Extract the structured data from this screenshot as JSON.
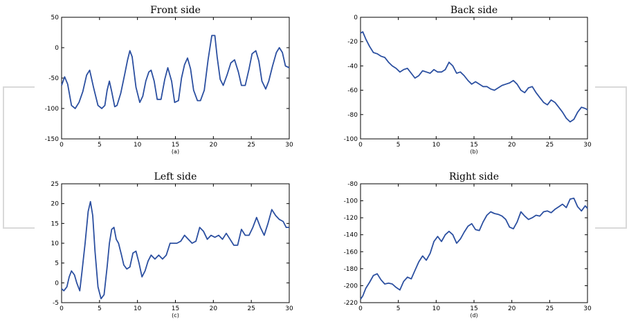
{
  "chart_data": [
    {
      "type": "line",
      "title": "Front side",
      "caption": "(a)",
      "xlabel": "",
      "ylabel": "",
      "xlim": [
        0,
        30
      ],
      "ylim": [
        -150,
        50
      ],
      "xticks": [
        0,
        5,
        10,
        15,
        20,
        25,
        30
      ],
      "yticks": [
        -150,
        -100,
        -50,
        0,
        50
      ],
      "grid": false,
      "color": "#2b4fa0",
      "series": [
        {
          "x": [
            0,
            0.4,
            0.8,
            1.3,
            1.8,
            2.3,
            2.8,
            3.3,
            3.7,
            4.2,
            4.8,
            5.3,
            5.7,
            6.0,
            6.3,
            6.6,
            7.0,
            7.3,
            7.8,
            8.3,
            8.7,
            9.0,
            9.3,
            9.8,
            10.3,
            10.7,
            11.1,
            11.5,
            11.8,
            12.2,
            12.6,
            13.1,
            13.6,
            14.0,
            14.5,
            14.9,
            15.4,
            15.8,
            16.2,
            16.6,
            17.0,
            17.4,
            17.9,
            18.3,
            18.8,
            19.3,
            19.8,
            20.2,
            20.5,
            20.9,
            21.3,
            21.8,
            22.3,
            22.8,
            23.3,
            23.7,
            24.2,
            24.7,
            25.1,
            25.6,
            26.0,
            26.4,
            26.9,
            27.3,
            27.8,
            28.3,
            28.7,
            29.1,
            29.5,
            30
          ],
          "y": [
            -62,
            -48,
            -60,
            -95,
            -100,
            -90,
            -72,
            -45,
            -37,
            -65,
            -95,
            -100,
            -95,
            -70,
            -55,
            -72,
            -97,
            -95,
            -75,
            -45,
            -20,
            -5,
            -15,
            -65,
            -90,
            -80,
            -55,
            -40,
            -37,
            -55,
            -85,
            -85,
            -52,
            -33,
            -55,
            -90,
            -87,
            -50,
            -28,
            -17,
            -35,
            -70,
            -87,
            -87,
            -70,
            -20,
            20,
            20,
            -15,
            -52,
            -62,
            -45,
            -25,
            -20,
            -40,
            -62,
            -62,
            -35,
            -10,
            -5,
            -22,
            -55,
            -68,
            -55,
            -30,
            -8,
            0,
            -8,
            -30,
            -33
          ]
        }
      ]
    },
    {
      "type": "line",
      "title": "Back side",
      "caption": "(b)",
      "xlabel": "",
      "ylabel": "",
      "xlim": [
        0,
        30
      ],
      "ylim": [
        -100,
        0
      ],
      "xticks": [
        0,
        5,
        10,
        15,
        20,
        25,
        30
      ],
      "yticks": [
        -100,
        -80,
        -60,
        -40,
        -20,
        0
      ],
      "grid": false,
      "color": "#2b4fa0",
      "series": [
        {
          "x": [
            0,
            0.3,
            0.7,
            1.2,
            1.7,
            2.2,
            2.7,
            3.2,
            3.7,
            4.2,
            4.7,
            5.2,
            5.7,
            6.2,
            6.7,
            7.2,
            7.7,
            8.2,
            8.7,
            9.2,
            9.7,
            10.2,
            10.7,
            11.2,
            11.7,
            12.2,
            12.7,
            13.2,
            13.7,
            14.2,
            14.7,
            15.2,
            15.7,
            16.2,
            16.7,
            17.2,
            17.7,
            18.2,
            18.7,
            19.2,
            19.7,
            20.2,
            20.7,
            21.2,
            21.7,
            22.2,
            22.7,
            23.2,
            23.7,
            24.2,
            24.7,
            25.2,
            25.7,
            26.2,
            26.7,
            27.2,
            27.7,
            28.2,
            28.7,
            29.2,
            29.7,
            30
          ],
          "y": [
            -13,
            -12,
            -18,
            -24,
            -29,
            -30,
            -32,
            -33,
            -37,
            -40,
            -42,
            -45,
            -43,
            -42,
            -46,
            -50,
            -48,
            -44,
            -45,
            -46,
            -43,
            -45,
            -45,
            -43,
            -37,
            -40,
            -46,
            -45,
            -48,
            -52,
            -55,
            -53,
            -55,
            -57,
            -57,
            -59,
            -60,
            -58,
            -56,
            -55,
            -54,
            -52,
            -55,
            -60,
            -62,
            -58,
            -57,
            -62,
            -66,
            -70,
            -72,
            -68,
            -70,
            -74,
            -78,
            -83,
            -86,
            -84,
            -78,
            -74,
            -75,
            -76
          ]
        }
      ]
    },
    {
      "type": "line",
      "title": "Left side",
      "caption": "(c)",
      "xlabel": "",
      "ylabel": "",
      "xlim": [
        0,
        30
      ],
      "ylim": [
        -5,
        25
      ],
      "xticks": [
        0,
        5,
        10,
        15,
        20,
        25,
        30
      ],
      "yticks": [
        -5,
        0,
        5,
        10,
        15,
        20,
        25
      ],
      "grid": false,
      "color": "#2b4fa0",
      "series": [
        {
          "x": [
            0,
            0.3,
            0.7,
            1.0,
            1.3,
            1.7,
            2.0,
            2.4,
            2.7,
            3.1,
            3.5,
            3.8,
            4.1,
            4.4,
            4.8,
            5.2,
            5.6,
            6.0,
            6.3,
            6.6,
            6.9,
            7.2,
            7.5,
            7.9,
            8.2,
            8.6,
            9.0,
            9.4,
            9.8,
            10.2,
            10.6,
            11.0,
            11.4,
            11.8,
            12.3,
            12.8,
            13.3,
            13.8,
            14.3,
            14.8,
            15.2,
            15.7,
            16.2,
            16.7,
            17.2,
            17.7,
            18.2,
            18.7,
            19.2,
            19.7,
            20.2,
            20.7,
            21.2,
            21.7,
            22.2,
            22.7,
            23.2,
            23.7,
            24.2,
            24.7,
            25.2,
            25.7,
            26.2,
            26.7,
            27.2,
            27.7,
            28.2,
            28.7,
            29.2,
            29.6,
            30
          ],
          "y": [
            -1.5,
            -2,
            -1,
            1.5,
            3,
            2,
            0,
            -2,
            3,
            10,
            18,
            20.5,
            17,
            8,
            -1,
            -4,
            -3,
            4,
            10,
            13.5,
            14,
            11,
            10,
            7,
            4.5,
            3.5,
            4,
            7.5,
            8,
            5,
            1.5,
            3,
            5.5,
            7,
            6,
            7,
            6,
            7,
            10,
            10,
            10,
            10.5,
            12,
            11,
            10,
            10.5,
            14,
            13,
            11,
            12,
            11.5,
            12,
            11,
            12.5,
            11,
            9.5,
            9.5,
            13.5,
            12,
            12,
            14,
            16.5,
            14,
            12,
            15,
            18.5,
            17,
            16,
            15.5,
            14,
            14
          ]
        }
      ]
    },
    {
      "type": "line",
      "title": "Right side",
      "caption": "(d)",
      "xlabel": "",
      "ylabel": "",
      "xlim": [
        0,
        30
      ],
      "ylim": [
        -220,
        -80
      ],
      "xticks": [
        0,
        5,
        10,
        15,
        20,
        25,
        30
      ],
      "yticks": [
        -220,
        -200,
        -180,
        -160,
        -140,
        -120,
        -100,
        -80
      ],
      "grid": false,
      "color": "#2b4fa0",
      "series": [
        {
          "x": [
            0,
            0.3,
            0.7,
            1.2,
            1.7,
            2.2,
            2.7,
            3.2,
            3.7,
            4.2,
            4.7,
            5.2,
            5.7,
            6.2,
            6.7,
            7.2,
            7.7,
            8.2,
            8.7,
            9.2,
            9.7,
            10.2,
            10.7,
            11.2,
            11.7,
            12.2,
            12.7,
            13.2,
            13.7,
            14.2,
            14.7,
            15.2,
            15.7,
            16.2,
            16.7,
            17.2,
            17.7,
            18.2,
            18.7,
            19.2,
            19.7,
            20.2,
            20.7,
            21.2,
            21.7,
            22.2,
            22.7,
            23.2,
            23.7,
            24.2,
            24.7,
            25.2,
            25.7,
            26.2,
            26.7,
            27.2,
            27.7,
            28.2,
            28.7,
            29.2,
            29.7,
            30
          ],
          "y": [
            -216,
            -212,
            -203,
            -196,
            -188,
            -186,
            -193,
            -198,
            -197,
            -198,
            -202,
            -205,
            -195,
            -190,
            -192,
            -182,
            -172,
            -165,
            -170,
            -162,
            -148,
            -142,
            -148,
            -140,
            -136,
            -140,
            -150,
            -145,
            -137,
            -130,
            -127,
            -134,
            -135,
            -125,
            -117,
            -113,
            -115,
            -116,
            -118,
            -122,
            -131,
            -133,
            -125,
            -113,
            -118,
            -122,
            -120,
            -117,
            -118,
            -113,
            -112,
            -114,
            -110,
            -107,
            -104,
            -108,
            -98,
            -97,
            -107,
            -112,
            -106,
            -109
          ]
        }
      ]
    }
  ]
}
